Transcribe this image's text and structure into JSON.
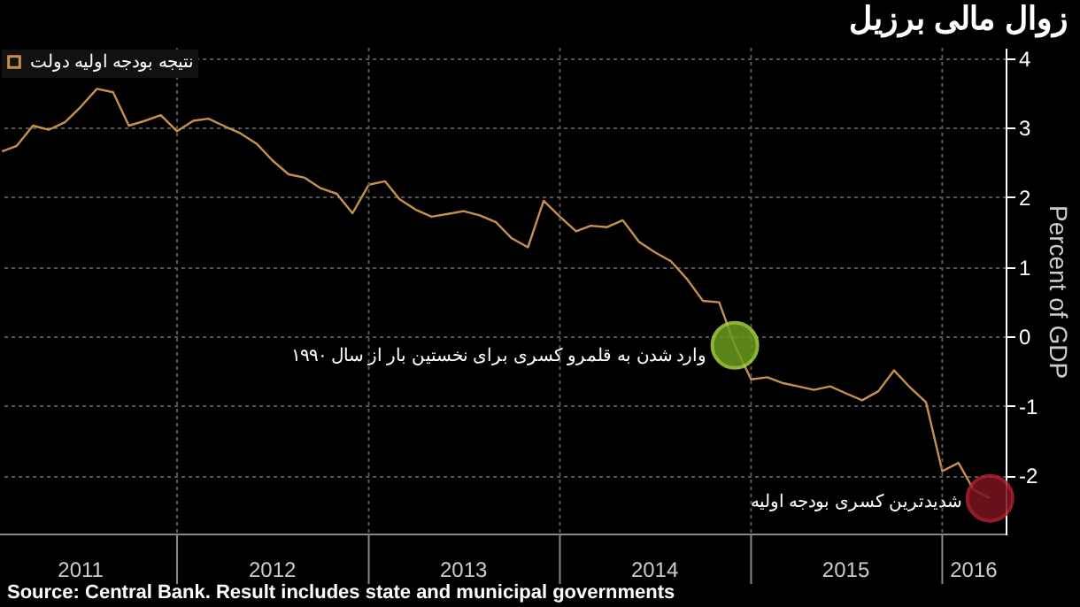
{
  "chart_data": {
    "type": "line",
    "title": "زوال مالی برزیل",
    "ylabel": "Percent of GDP",
    "x": [
      "2011-02",
      "2011-03",
      "2011-04",
      "2011-05",
      "2011-06",
      "2011-07",
      "2011-08",
      "2011-09",
      "2011-10",
      "2011-11",
      "2011-12",
      "2012-01",
      "2012-02",
      "2012-03",
      "2012-04",
      "2012-05",
      "2012-06",
      "2012-07",
      "2012-08",
      "2012-09",
      "2012-10",
      "2012-11",
      "2012-12",
      "2013-01",
      "2013-02",
      "2013-03",
      "2013-04",
      "2013-05",
      "2013-06",
      "2013-07",
      "2013-08",
      "2013-09",
      "2013-10",
      "2013-11",
      "2013-12",
      "2014-01",
      "2014-02",
      "2014-03",
      "2014-04",
      "2014-05",
      "2014-06",
      "2014-07",
      "2014-08",
      "2014-09",
      "2014-10",
      "2014-11",
      "2014-12",
      "2015-01",
      "2015-02",
      "2015-03",
      "2015-04",
      "2015-05",
      "2015-06",
      "2015-07",
      "2015-08",
      "2015-09",
      "2015-10",
      "2015-11",
      "2015-12",
      "2016-01",
      "2016-02",
      "2016-03",
      "2016-04"
    ],
    "series": [
      {
        "name": "نتیجه بودجه اولیه دولت",
        "color": "#c8904a",
        "values": [
          2.66,
          2.74,
          3.03,
          2.97,
          3.08,
          3.3,
          3.56,
          3.51,
          3.03,
          3.1,
          3.18,
          2.95,
          3.1,
          3.13,
          3.02,
          2.92,
          2.77,
          2.53,
          2.33,
          2.28,
          2.13,
          2.05,
          1.77,
          2.18,
          2.23,
          1.97,
          1.82,
          1.72,
          1.76,
          1.8,
          1.74,
          1.64,
          1.41,
          1.28,
          1.95,
          1.72,
          1.51,
          1.59,
          1.57,
          1.67,
          1.36,
          1.21,
          1.08,
          0.82,
          0.51,
          0.49,
          -0.13,
          -0.62,
          -0.59,
          -0.67,
          -0.72,
          -0.77,
          -0.72,
          -0.82,
          -0.92,
          -0.79,
          -0.49,
          -0.74,
          -0.95,
          -1.94,
          -1.82,
          -2.21,
          -2.33
        ]
      }
    ],
    "xlim": [
      "2011-01-28",
      "2016-05-01"
    ],
    "xticks": [
      {
        "value": "2011-07-01",
        "label": "2011"
      },
      {
        "value": "2012-01-01",
        "label": null
      },
      {
        "value": "2012-07-01",
        "label": "2012"
      },
      {
        "value": "2013-01-01",
        "label": null
      },
      {
        "value": "2013-07-01",
        "label": "2013"
      },
      {
        "value": "2014-01-01",
        "label": null
      },
      {
        "value": "2014-07-01",
        "label": "2014"
      },
      {
        "value": "2015-01-01",
        "label": null
      },
      {
        "value": "2015-07-01",
        "label": "2015"
      },
      {
        "value": "2016-01-01",
        "label": null
      },
      {
        "value": "2016-03-01",
        "label": "2016"
      }
    ],
    "ylim": [
      -2.85,
      4.15
    ],
    "yticks": [
      -2,
      -1,
      0,
      1,
      2,
      3,
      4
    ],
    "grid": true,
    "legend": "top left",
    "annotations": [
      {
        "text": "وارد شدن به قلمرو کسری برای نخستین بار از سال ۱۹۹۰",
        "x": "2014-12",
        "y": -0.13
      },
      {
        "text": "شدیدترین کسری بودجه اولیه",
        "x": "2016-04",
        "y": -2.33
      },
      "Source: Central Bank. Result includes state and municipal governments"
    ]
  }
}
